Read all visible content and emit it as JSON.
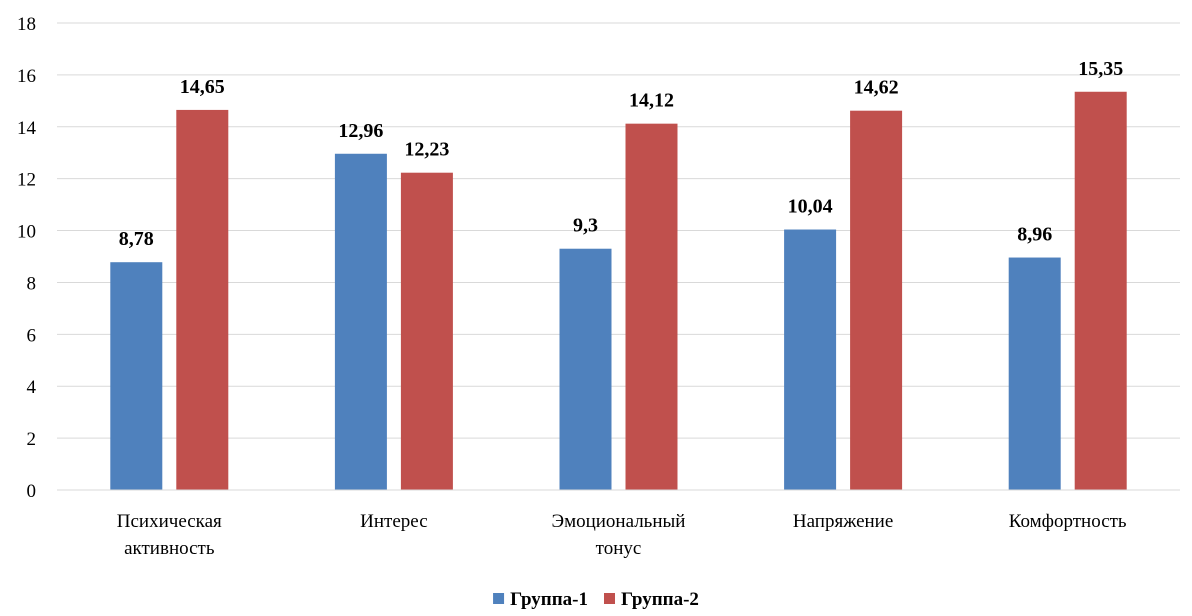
{
  "chart_data": {
    "type": "bar",
    "categories": [
      [
        "Психическая",
        "активность"
      ],
      [
        "Интерес"
      ],
      [
        "Эмоциональный",
        "тонус"
      ],
      [
        "Напряжение"
      ],
      [
        "Комфортность"
      ]
    ],
    "series": [
      {
        "name": "Группа-1",
        "color": "#4F81BD",
        "values": [
          8.78,
          12.96,
          9.3,
          10.04,
          8.96
        ],
        "labels": [
          "8,78",
          "12,96",
          "9,3",
          "10,04",
          "8,96"
        ]
      },
      {
        "name": "Группа-2",
        "color": "#C0504D",
        "values": [
          14.65,
          12.23,
          14.12,
          14.62,
          15.35
        ],
        "labels": [
          "14,65",
          "12,23",
          "14,12",
          "14,62",
          "15,35"
        ]
      }
    ],
    "yticks": [
      "0",
      "2",
      "4",
      "6",
      "8",
      "10",
      "12",
      "14",
      "16",
      "18"
    ],
    "ylim": [
      0,
      18
    ],
    "grid": true,
    "gridColor": "#D9D9D9",
    "legend": "bottom-center",
    "title": "",
    "xlabel": "",
    "ylabel": ""
  }
}
